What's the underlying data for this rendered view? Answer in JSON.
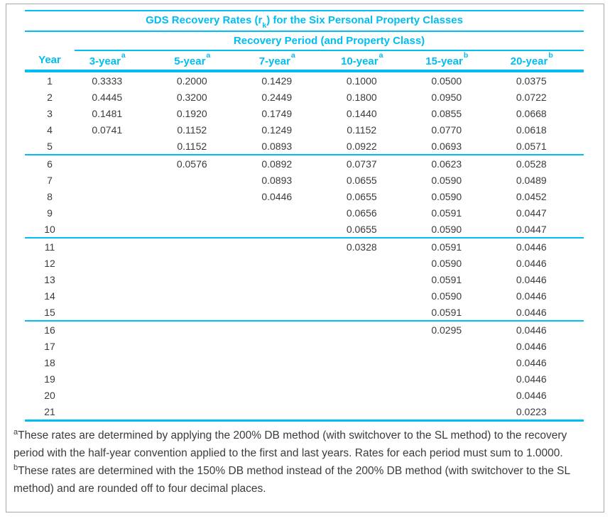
{
  "table": {
    "title": {
      "pre": "GDS Recovery Rates (r",
      "sub": "k",
      "post": ") for the Six Personal Property Classes"
    },
    "subtitle": "Recovery Period (and Property Class)",
    "year_header": "Year",
    "columns": [
      {
        "label": "3-year",
        "sup": "a"
      },
      {
        "label": "5-year",
        "sup": "a"
      },
      {
        "label": "7-year",
        "sup": "a"
      },
      {
        "label": "10-year",
        "sup": "a"
      },
      {
        "label": "15-year",
        "sup": "b"
      },
      {
        "label": "20-year",
        "sup": "b"
      }
    ],
    "rows": [
      {
        "year": "1",
        "values": [
          "0.3333",
          "0.2000",
          "0.1429",
          "0.1000",
          "0.0500",
          "0.0375"
        ]
      },
      {
        "year": "2",
        "values": [
          "0.4445",
          "0.3200",
          "0.2449",
          "0.1800",
          "0.0950",
          "0.0722"
        ]
      },
      {
        "year": "3",
        "values": [
          "0.1481",
          "0.1920",
          "0.1749",
          "0.1440",
          "0.0855",
          "0.0668"
        ]
      },
      {
        "year": "4",
        "values": [
          "0.0741",
          "0.1152",
          "0.1249",
          "0.1152",
          "0.0770",
          "0.0618"
        ]
      },
      {
        "year": "5",
        "values": [
          "",
          "0.1152",
          "0.0893",
          "0.0922",
          "0.0693",
          "0.0571"
        ]
      },
      {
        "year": "6",
        "values": [
          "",
          "0.0576",
          "0.0892",
          "0.0737",
          "0.0623",
          "0.0528"
        ]
      },
      {
        "year": "7",
        "values": [
          "",
          "",
          "0.0893",
          "0.0655",
          "0.0590",
          "0.0489"
        ]
      },
      {
        "year": "8",
        "values": [
          "",
          "",
          "0.0446",
          "0.0655",
          "0.0590",
          "0.0452"
        ]
      },
      {
        "year": "9",
        "values": [
          "",
          "",
          "",
          "0.0656",
          "0.0591",
          "0.0447"
        ]
      },
      {
        "year": "10",
        "values": [
          "",
          "",
          "",
          "0.0655",
          "0.0590",
          "0.0447"
        ]
      },
      {
        "year": "11",
        "values": [
          "",
          "",
          "",
          "0.0328",
          "0.0591",
          "0.0446"
        ]
      },
      {
        "year": "12",
        "values": [
          "",
          "",
          "",
          "",
          "0.0590",
          "0.0446"
        ]
      },
      {
        "year": "13",
        "values": [
          "",
          "",
          "",
          "",
          "0.0591",
          "0.0446"
        ]
      },
      {
        "year": "14",
        "values": [
          "",
          "",
          "",
          "",
          "0.0590",
          "0.0446"
        ]
      },
      {
        "year": "15",
        "values": [
          "",
          "",
          "",
          "",
          "0.0591",
          "0.0446"
        ]
      },
      {
        "year": "16",
        "values": [
          "",
          "",
          "",
          "",
          "0.0295",
          "0.0446"
        ]
      },
      {
        "year": "17",
        "values": [
          "",
          "",
          "",
          "",
          "",
          "0.0446"
        ]
      },
      {
        "year": "18",
        "values": [
          "",
          "",
          "",
          "",
          "",
          "0.0446"
        ]
      },
      {
        "year": "19",
        "values": [
          "",
          "",
          "",
          "",
          "",
          "0.0446"
        ]
      },
      {
        "year": "20",
        "values": [
          "",
          "",
          "",
          "",
          "",
          "0.0446"
        ]
      },
      {
        "year": "21",
        "values": [
          "",
          "",
          "",
          "",
          "",
          "0.0223"
        ]
      }
    ],
    "group_breaks_after": [
      5,
      10,
      15
    ]
  },
  "footnotes": [
    {
      "marker": "a",
      "text": "These rates are determined by applying the 200% DB method (with switchover to the SL method) to the recovery period with the half-year convention applied to the first and last years. Rates for each period must sum to 1.0000."
    },
    {
      "marker": "b",
      "text": "These rates are determined with the 150% DB method instead of the 200% DB method (with switchover to the SL method) and are rounded off to four decimal places."
    }
  ],
  "colors": {
    "accent": "#00bdf2",
    "text": "#3b3b3b",
    "frame_border": "#a9a9a9"
  }
}
